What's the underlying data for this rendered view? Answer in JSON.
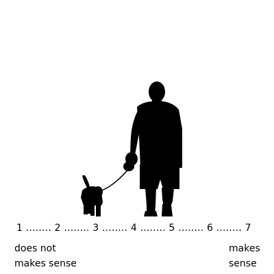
{
  "illustration": {
    "description_icon": "man-walking-dog-silhouette-icon",
    "fill_color": "#000000"
  },
  "scale": {
    "row_text": "1 ........ 2 ........ 3 ........ 4 ........ 5 ........ 6 ........ 7"
  },
  "anchors": {
    "left": {
      "line1": "does not",
      "line2": "makes sense"
    },
    "right": {
      "line1": "makes",
      "line2": "sense"
    }
  }
}
